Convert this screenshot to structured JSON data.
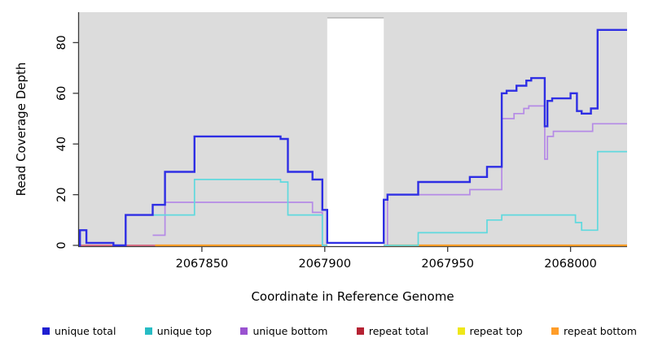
{
  "chart_data": {
    "type": "line",
    "subtype": "step-coverage",
    "title": "",
    "xlabel": "Coordinate in Reference Genome",
    "ylabel": "Read Coverage Depth",
    "xlim": [
      2067800,
      2068023
    ],
    "ylim": [
      0,
      92
    ],
    "grid": false,
    "legend_position": "bottom",
    "plot_bg": "#dcdcdc",
    "axis_color": "#3a3a3a",
    "x_ticks": [
      {
        "value": 2067850,
        "label": "2067850"
      },
      {
        "value": 2067900,
        "label": "2067900"
      },
      {
        "value": 2067950,
        "label": "2067950"
      },
      {
        "value": 2068000,
        "label": "2068000"
      }
    ],
    "y_ticks": [
      {
        "value": 0,
        "label": "0"
      },
      {
        "value": 20,
        "label": "20"
      },
      {
        "value": 40,
        "label": "40"
      },
      {
        "value": 60,
        "label": "60"
      },
      {
        "value": 80,
        "label": "80"
      }
    ],
    "no_data_gap": {
      "from": 2067901,
      "to": 2067924
    },
    "draw_order": [
      "repeat total",
      "repeat top",
      "repeat bottom",
      "unique bottom",
      "unique top",
      "unique total"
    ],
    "series": [
      {
        "name": "unique total",
        "color": "#1f1fd1",
        "line_color": "#2e2ee4",
        "width": 2.4,
        "segments": [
          {
            "end": 2068023,
            "steps": [
              [
                2067800,
                0
              ],
              [
                2067800.4,
                6
              ],
              [
                2067803,
                1
              ],
              [
                2067814,
                0
              ],
              [
                2067819,
                12
              ],
              [
                2067830,
                16
              ],
              [
                2067835,
                29
              ],
              [
                2067847,
                43
              ],
              [
                2067882,
                42
              ],
              [
                2067885,
                29
              ],
              [
                2067895,
                26
              ],
              [
                2067899,
                14
              ],
              [
                2067901,
                1
              ],
              [
                2067924,
                18
              ],
              [
                2067925.5,
                20
              ],
              [
                2067938,
                25
              ],
              [
                2067959,
                27
              ],
              [
                2067966,
                31
              ],
              [
                2067972,
                60
              ],
              [
                2067974,
                61
              ],
              [
                2067978,
                63
              ],
              [
                2067982,
                65
              ],
              [
                2067984,
                66
              ],
              [
                2067989.5,
                47
              ],
              [
                2067990.6,
                57
              ],
              [
                2067992.5,
                58
              ],
              [
                2068000,
                60
              ],
              [
                2068002.6,
                53
              ],
              [
                2068004.5,
                52
              ],
              [
                2068008.3,
                54
              ],
              [
                2068011,
                85
              ]
            ]
          }
        ]
      },
      {
        "name": "unique top",
        "color": "#27bcc4",
        "line_color": "#5fd9de",
        "width": 1.7,
        "segments": [
          {
            "end": 2067901,
            "steps": [
              [
                2067830,
                12
              ],
              [
                2067847,
                26
              ],
              [
                2067882,
                25
              ],
              [
                2067885,
                12
              ],
              [
                2067899,
                0
              ]
            ]
          },
          {
            "end": 2068023,
            "steps": [
              [
                2067924,
                0
              ],
              [
                2067938,
                5
              ],
              [
                2067966,
                10
              ],
              [
                2067972,
                12
              ],
              [
                2068002,
                9
              ],
              [
                2068004.5,
                6
              ],
              [
                2068011,
                37
              ]
            ]
          }
        ]
      },
      {
        "name": "unique bottom",
        "color": "#9a52d0",
        "line_color": "#b58ae6",
        "width": 1.7,
        "segments": [
          {
            "end": 2067901,
            "steps": [
              [
                2067830,
                4
              ],
              [
                2067835,
                17
              ],
              [
                2067895,
                13
              ],
              [
                2067899,
                0
              ]
            ]
          },
          {
            "end": 2068023,
            "steps": [
              [
                2067924,
                0
              ],
              [
                2067925.5,
                20
              ],
              [
                2067959,
                22
              ],
              [
                2067972,
                50
              ],
              [
                2067977,
                52
              ],
              [
                2067981,
                54
              ],
              [
                2067983,
                55
              ],
              [
                2067989.5,
                34
              ],
              [
                2067990.6,
                43
              ],
              [
                2067993,
                45
              ],
              [
                2068009,
                48
              ]
            ]
          }
        ]
      },
      {
        "name": "repeat total",
        "color": "#b52233",
        "line_color": "#d4607a",
        "width": 1.7,
        "segments": [
          {
            "end": 2067834,
            "steps": [
              [
                2067800,
                0
              ]
            ]
          }
        ]
      },
      {
        "name": "repeat top",
        "color": "#efe719",
        "line_color": "#efe719",
        "width": 1.7,
        "segments": [
          {
            "end": 2067901,
            "steps": [
              [
                2067831,
                0
              ]
            ]
          },
          {
            "end": 2068023,
            "steps": [
              [
                2067924,
                0
              ]
            ]
          }
        ]
      },
      {
        "name": "repeat bottom",
        "color": "#ff9d28",
        "line_color": "#ff9d28",
        "width": 2.2,
        "segments": [
          {
            "end": 2067901,
            "steps": [
              [
                2067831,
                0
              ]
            ]
          },
          {
            "end": 2068023,
            "steps": [
              [
                2067924,
                0
              ]
            ]
          }
        ]
      }
    ],
    "legend": [
      {
        "label": "unique total",
        "color": "#1f1fd1"
      },
      {
        "label": "unique top",
        "color": "#27bcc4"
      },
      {
        "label": "unique bottom",
        "color": "#9a52d0"
      },
      {
        "label": "repeat total",
        "color": "#b52233"
      },
      {
        "label": "repeat top",
        "color": "#efe719"
      },
      {
        "label": "repeat bottom",
        "color": "#ff9d28"
      }
    ]
  }
}
